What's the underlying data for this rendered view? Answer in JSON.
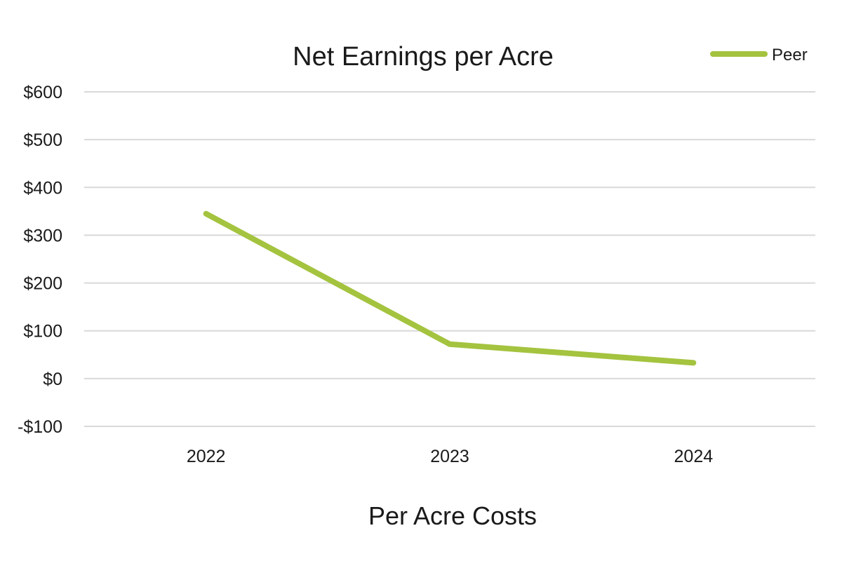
{
  "chart_data": {
    "type": "line",
    "title": "Net Earnings per Acre",
    "xlabel": "Per Acre Costs",
    "ylabel": "",
    "categories": [
      "2022",
      "2023",
      "2024"
    ],
    "series": [
      {
        "name": "Peer",
        "values": [
          345,
          72,
          33
        ],
        "color": "#a4c33f"
      }
    ],
    "ylim": [
      -100,
      600
    ],
    "ytick_values": [
      -100,
      0,
      100,
      200,
      300,
      400,
      500,
      600
    ],
    "ytick_labels": [
      "-$100",
      "$0",
      "$100",
      "$200",
      "$300",
      "$400",
      "$500",
      "$600"
    ],
    "grid": true,
    "legend_position": "top-right"
  }
}
